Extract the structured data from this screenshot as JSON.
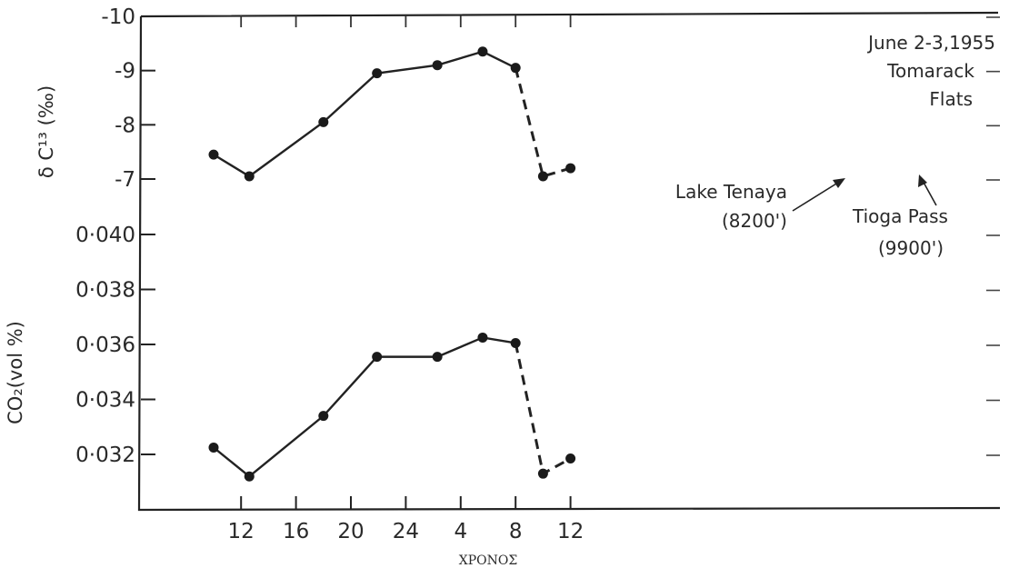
{
  "chart_data": {
    "type": "line",
    "x_tick_labels": [
      "12",
      "16",
      "20",
      "24",
      "4",
      "8",
      "12"
    ],
    "xlabel": "ΧΡΟΝΟΣ",
    "panels": [
      {
        "ylabel": "δ C¹³ (‰)",
        "y_tick_labels": [
          "-10",
          "-9",
          "-8",
          "-7"
        ],
        "ylim": [
          -10,
          -6.6
        ],
        "series": [
          {
            "x": [
              10.0,
              12.6,
              18.0,
              21.9,
              26.3,
              29.6,
              32.0,
              34.0,
              36.0
            ],
            "values": [
              -7.45,
              -7.05,
              -8.05,
              -8.95,
              -9.1,
              -9.35,
              -9.05,
              -7.05,
              -7.2
            ],
            "dashed_from_index": 6
          }
        ]
      },
      {
        "ylabel": "CO₂(vol %)",
        "y_tick_labels": [
          "0·040",
          "0·038",
          "0·036",
          "0·034",
          "0·032"
        ],
        "ylim": [
          0.0308,
          0.0408
        ],
        "series": [
          {
            "x": [
              10.0,
              12.6,
              18.0,
              21.9,
              26.3,
              29.6,
              32.0,
              34.0,
              36.0
            ],
            "values": [
              0.03225,
              0.0312,
              0.0334,
              0.03555,
              0.03555,
              0.03625,
              0.03605,
              0.0313,
              0.03185
            ],
            "dashed_from_index": 6
          }
        ]
      }
    ],
    "annotations": [
      {
        "text_lines": [
          "June 2-3,1955",
          "Tomarack",
          "Flats"
        ]
      },
      {
        "text_lines": [
          "Lake Tenaya",
          "(8200')"
        ],
        "points_to_index": 7
      },
      {
        "text_lines": [
          "Tioga Pass",
          "(9900')"
        ],
        "points_to_index": 8
      }
    ]
  }
}
